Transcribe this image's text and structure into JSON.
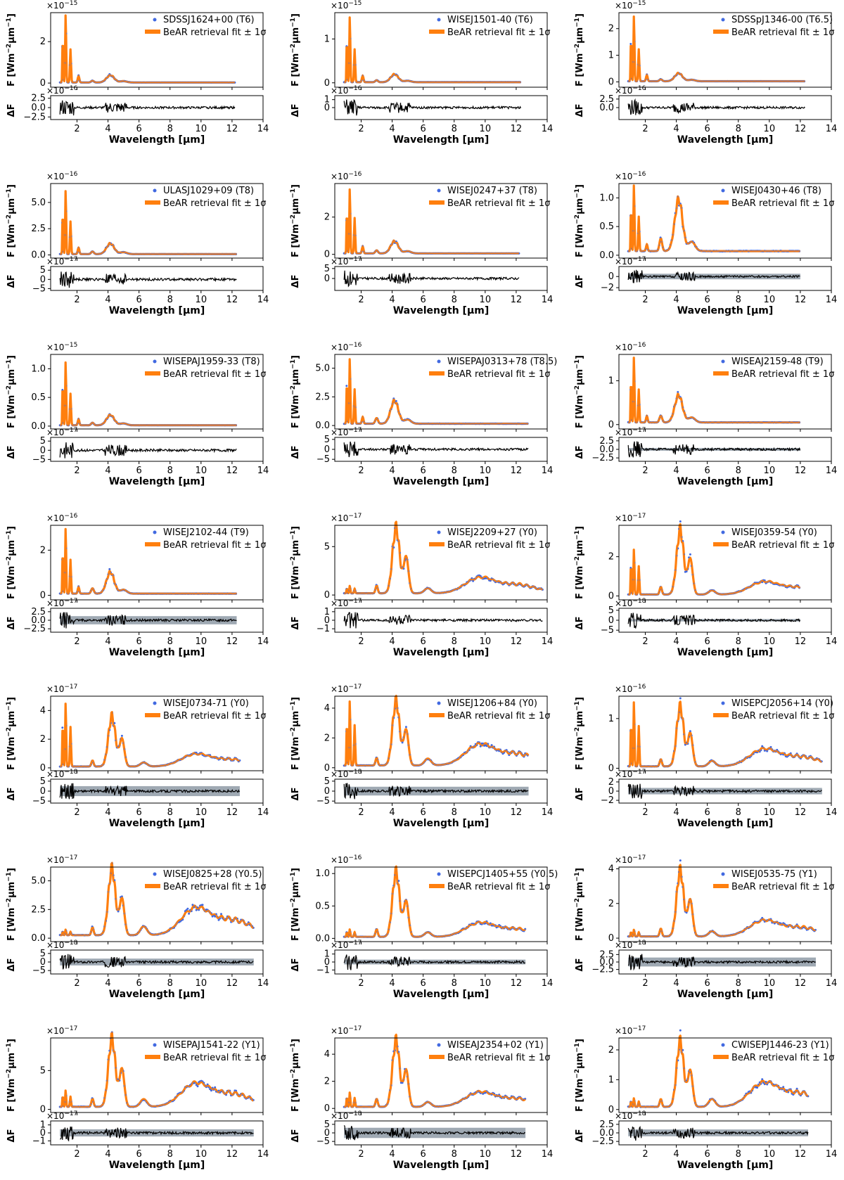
{
  "colors": {
    "data": "#4169e1",
    "fit": "#ff7f0e",
    "resid": "#000000",
    "band": "#7f8c9a"
  },
  "legend_fit_label": "BeAR retrieval fit ± 1σ",
  "flux_ylabel_main": "F [Wm",
  "flux_ylabel_unit": "μm",
  "resid_ylabel": "ΔF",
  "x_axis": {
    "label": "Wavelength [μm]",
    "ticks": [
      "2",
      "4",
      "6",
      "8",
      "10",
      "12",
      "14"
    ],
    "range": [
      0.3,
      14
    ]
  },
  "chart_data": [
    {
      "type": "line",
      "name": "SDSSJ1624+00 (T6)",
      "exp": "−15",
      "scale": 1e-15,
      "ylim": [
        -0.2,
        3.4
      ],
      "yticks": [
        "0",
        "2"
      ],
      "yvals": [
        0,
        2
      ],
      "rexp": "−16",
      "rlim": [
        -3.2,
        3.2
      ],
      "rticks": [
        "2.5",
        "0.0",
        "−2.5"
      ],
      "rvals": [
        2.5,
        0,
        -2.5
      ],
      "xmax": 12.2,
      "class": "T",
      "peaks": [
        3.4,
        1.6,
        0.35
      ],
      "band": 0
    },
    {
      "type": "line",
      "name": "WISEJ1501-40 (T6)",
      "exp": "−15",
      "scale": 1e-15,
      "ylim": [
        -0.1,
        1.6
      ],
      "yticks": [
        "0",
        "1"
      ],
      "yvals": [
        0,
        1
      ],
      "rexp": "−16",
      "rlim": [
        -1.5,
        1.5
      ],
      "rticks": [
        "1",
        "0"
      ],
      "rvals": [
        1,
        0
      ],
      "xmax": 12.3,
      "class": "T",
      "peaks": [
        1.55,
        0.75,
        0.18
      ],
      "band": 0
    },
    {
      "type": "line",
      "name": "SDSSpJ1346-00 (T6.5)",
      "exp": "−15",
      "scale": 1e-15,
      "ylim": [
        -0.2,
        2.6
      ],
      "yticks": [
        "0",
        "1",
        "2"
      ],
      "yvals": [
        0,
        1,
        2
      ],
      "rexp": "−16",
      "rlim": [
        -3.5,
        3.5
      ],
      "rticks": [
        "2.5",
        "0.0"
      ],
      "rvals": [
        2.5,
        0
      ],
      "xmax": 12.3,
      "class": "T",
      "peaks": [
        2.55,
        1.2,
        0.3
      ],
      "band": 0
    },
    {
      "type": "line",
      "name": "ULASJ1029+09 (T8)",
      "exp": "−16",
      "scale": 1e-16,
      "ylim": [
        -0.3,
        6.8
      ],
      "yticks": [
        "0.0",
        "2.5",
        "5.0"
      ],
      "yvals": [
        0,
        2.5,
        5
      ],
      "rexp": "−17",
      "rlim": [
        -6,
        7
      ],
      "rticks": [
        "5",
        "0",
        "−5"
      ],
      "rvals": [
        5,
        0,
        -5
      ],
      "xmax": 12.3,
      "class": "T",
      "peaks": [
        6.3,
        3.1,
        1.0
      ],
      "band": 0
    },
    {
      "type": "line",
      "name": "WISEJ0247+37 (T8)",
      "exp": "−16",
      "scale": 1e-16,
      "ylim": [
        -0.2,
        3.8
      ],
      "yticks": [
        "0",
        "2"
      ],
      "yvals": [
        0,
        2
      ],
      "rexp": "−17",
      "rlim": [
        -6,
        6
      ],
      "rticks": [
        "5",
        "0"
      ],
      "rvals": [
        5,
        0
      ],
      "xmax": 12.2,
      "class": "T",
      "peaks": [
        3.6,
        1.9,
        0.65
      ],
      "band": 0
    },
    {
      "type": "line",
      "name": "WISEJ0430+46 (T8)",
      "exp": "−16",
      "scale": 1e-16,
      "ylim": [
        -0.05,
        1.25
      ],
      "yticks": [
        "0.0",
        "0.5",
        "1.0"
      ],
      "yvals": [
        0,
        0.5,
        1
      ],
      "rexp": "−17",
      "rlim": [
        -2.5,
        1.8
      ],
      "rticks": [
        "0",
        "−2"
      ],
      "rvals": [
        0,
        -2
      ],
      "xmax": 12.0,
      "class": "T",
      "peaks": [
        1.2,
        0.6,
        0.9
      ],
      "band": 0.5
    },
    {
      "type": "line",
      "name": "WISEPAJ1959-33 (T8)",
      "exp": "−15",
      "scale": 1e-15,
      "ylim": [
        -0.05,
        1.25
      ],
      "yticks": [
        "0.0",
        "0.5",
        "1.0"
      ],
      "yvals": [
        0,
        0.5,
        1
      ],
      "rexp": "−17",
      "rlim": [
        -6,
        7
      ],
      "rticks": [
        "5",
        "0",
        "−5"
      ],
      "rvals": [
        5,
        0,
        -5
      ],
      "xmax": 12.3,
      "class": "T",
      "peaks": [
        1.15,
        0.55,
        0.18
      ],
      "band": 0
    },
    {
      "type": "line",
      "name": "WISEPAJ0313+78 (T8.5)",
      "exp": "−16",
      "scale": 1e-16,
      "ylim": [
        -0.3,
        6.2
      ],
      "yticks": [
        "0.0",
        "2.5",
        "5.0"
      ],
      "yvals": [
        0,
        2.5,
        5
      ],
      "rexp": "−17",
      "rlim": [
        -6,
        6
      ],
      "rticks": [
        "5",
        "0",
        "−5"
      ],
      "rvals": [
        5,
        0,
        -5
      ],
      "xmax": 12.8,
      "class": "T",
      "peaks": [
        5.9,
        3.0,
        2.0
      ],
      "band": 0
    },
    {
      "type": "line",
      "name": "WISEAJ2159-48 (T9)",
      "exp": "−16",
      "scale": 1e-16,
      "ylim": [
        -0.1,
        1.6
      ],
      "yticks": [
        "0",
        "1"
      ],
      "yvals": [
        0,
        1
      ],
      "rexp": "−17",
      "rlim": [
        -3.5,
        3.5
      ],
      "rticks": [
        "2.5",
        "0.0",
        "−2.5"
      ],
      "rvals": [
        2.5,
        0,
        -2.5
      ],
      "xmax": 12.0,
      "class": "T",
      "peaks": [
        1.55,
        0.75,
        0.62
      ],
      "band": 0.4
    },
    {
      "type": "line",
      "name": "WISEJ2102-44 (T9)",
      "exp": "−16",
      "scale": 1e-16,
      "ylim": [
        -0.2,
        3.1
      ],
      "yticks": [
        "0",
        "2"
      ],
      "yvals": [
        0,
        2
      ],
      "rexp": "−17",
      "rlim": [
        -3.5,
        3.5
      ],
      "rticks": [
        "2.5",
        "0.0",
        "−2.5"
      ],
      "rvals": [
        2.5,
        0,
        -2.5
      ],
      "xmax": 12.3,
      "class": "T",
      "peaks": [
        3.0,
        1.5,
        0.95
      ],
      "band": 1.2
    },
    {
      "type": "line",
      "name": "WISEJ2209+27 (Y0)",
      "exp": "−17",
      "scale": 1e-17,
      "ylim": [
        -0.5,
        7.2
      ],
      "yticks": [
        "0",
        "5"
      ],
      "yvals": [
        0,
        5
      ],
      "rexp": "−17",
      "rlim": [
        -1.4,
        1.4
      ],
      "rticks": [
        "1",
        "0",
        "−1"
      ],
      "rvals": [
        1,
        0,
        -1
      ],
      "xmax": 13.7,
      "class": "Y",
      "peaks": [
        6.8,
        0.8,
        1.5
      ],
      "band": 0
    },
    {
      "type": "line",
      "name": "WISEJ0359-54 (Y0)",
      "exp": "−17",
      "scale": 1e-17,
      "ylim": [
        -0.2,
        3.6
      ],
      "yticks": [
        "0",
        "2"
      ],
      "yvals": [
        0,
        2
      ],
      "rexp": "−18",
      "rlim": [
        -6,
        6
      ],
      "rticks": [
        "5",
        "0",
        "−5"
      ],
      "rvals": [
        5,
        0,
        -5
      ],
      "xmax": 12.0,
      "class": "Y",
      "peaks": [
        3.3,
        2.4,
        0.6
      ],
      "band": 0.6
    },
    {
      "type": "line",
      "name": "WISEJ0734-71 (Y0)",
      "exp": "−17",
      "scale": 1e-17,
      "ylim": [
        -0.2,
        5.0
      ],
      "yticks": [
        "0",
        "2",
        "4"
      ],
      "yvals": [
        0,
        2,
        4
      ],
      "rexp": "−18",
      "rlim": [
        -6,
        6
      ],
      "rticks": [
        "5",
        "0",
        "−5"
      ],
      "rvals": [
        5,
        0,
        -5
      ],
      "xmax": 12.5,
      "class": "Y",
      "peaks": [
        3.5,
        4.6,
        0.8
      ],
      "band": 2.5
    },
    {
      "type": "line",
      "name": "WISEJ1206+84 (Y0)",
      "exp": "−17",
      "scale": 1e-17,
      "ylim": [
        -0.2,
        4.8
      ],
      "yticks": [
        "0",
        "2",
        "4"
      ],
      "yvals": [
        0,
        2,
        4
      ],
      "rexp": "−18",
      "rlim": [
        -6,
        6
      ],
      "rticks": [
        "5",
        "0",
        "−5"
      ],
      "rvals": [
        5,
        0,
        -5
      ],
      "xmax": 12.8,
      "class": "Y",
      "peaks": [
        4.3,
        4.5,
        1.3
      ],
      "band": 2.2
    },
    {
      "type": "line",
      "name": "WISEPCJ2056+14 (Y0)",
      "exp": "−16",
      "scale": 1e-16,
      "ylim": [
        -0.05,
        1.45
      ],
      "yticks": [
        "0",
        "1"
      ],
      "yvals": [
        0,
        1
      ],
      "rexp": "−17",
      "rlim": [
        -2.6,
        2.6
      ],
      "rticks": [
        "2",
        "0",
        "−2"
      ],
      "rvals": [
        2,
        0,
        -2
      ],
      "xmax": 13.4,
      "class": "Y",
      "peaks": [
        1.2,
        1.35,
        0.32
      ],
      "band": 0.7
    },
    {
      "type": "line",
      "name": "WISEJ0825+28 (Y0.5)",
      "exp": "−17",
      "scale": 1e-17,
      "ylim": [
        -0.3,
        6.2
      ],
      "yticks": [
        "0.0",
        "2.5",
        "5.0"
      ],
      "yvals": [
        0,
        2.5,
        5
      ],
      "rexp": "−18",
      "rlim": [
        -7,
        7
      ],
      "rticks": [
        "5",
        "0",
        "−5"
      ],
      "rvals": [
        5,
        0,
        -5
      ],
      "xmax": 13.4,
      "class": "Y",
      "peaks": [
        5.8,
        0.5,
        2.2
      ],
      "band": 2.0
    },
    {
      "type": "line",
      "name": "WISEPCJ1405+55 (Y0.5)",
      "exp": "−16",
      "scale": 1e-16,
      "ylim": [
        -0.05,
        1.1
      ],
      "yticks": [
        "0.0",
        "0.5",
        "1.0"
      ],
      "yvals": [
        0,
        0.5,
        1
      ],
      "rexp": "−17",
      "rlim": [
        -1.5,
        1.5
      ],
      "rticks": [
        "1",
        "0",
        "−1"
      ],
      "rvals": [
        1,
        0,
        -1
      ],
      "xmax": 12.6,
      "class": "Y",
      "peaks": [
        1.0,
        0.12,
        0.2
      ],
      "band": 0.3
    },
    {
      "type": "line",
      "name": "WISEJ0535-75 (Y1)",
      "exp": "−17",
      "scale": 1e-17,
      "ylim": [
        -0.2,
        4.1
      ],
      "yticks": [
        "0",
        "2",
        "4"
      ],
      "yvals": [
        0,
        2,
        4
      ],
      "rexp": "−18",
      "rlim": [
        -4,
        4
      ],
      "rticks": [
        "2.5",
        "0.0",
        "−2.5"
      ],
      "rvals": [
        2.5,
        0,
        -2.5
      ],
      "xmax": 13.0,
      "class": "Y",
      "peaks": [
        3.8,
        0.4,
        0.85
      ],
      "band": 1.5
    },
    {
      "type": "line",
      "name": "WISEPAJ1541-22 (Y1)",
      "exp": "−17",
      "scale": 1e-17,
      "ylim": [
        -0.4,
        9.2
      ],
      "yticks": [
        "0",
        "5"
      ],
      "yvals": [
        0,
        5
      ],
      "rexp": "−17",
      "rlim": [
        -1.5,
        1.5
      ],
      "rticks": [
        "1",
        "0",
        "−1"
      ],
      "rvals": [
        1,
        0,
        -1
      ],
      "xmax": 13.4,
      "class": "Y",
      "peaks": [
        8.8,
        2.2,
        2.8
      ],
      "band": 0.45
    },
    {
      "type": "line",
      "name": "WISEAJ2354+02 (Y1)",
      "exp": "−17",
      "scale": 1e-17,
      "ylim": [
        -0.3,
        5.2
      ],
      "yticks": [
        "0",
        "2",
        "4"
      ],
      "yvals": [
        0,
        2,
        4
      ],
      "rexp": "−18",
      "rlim": [
        -7,
        7
      ],
      "rticks": [
        "5",
        "0",
        "−5"
      ],
      "rvals": [
        5,
        0,
        -5
      ],
      "xmax": 12.6,
      "class": "Y",
      "peaks": [
        4.9,
        1.1,
        1.0
      ],
      "band": 3.0
    },
    {
      "type": "line",
      "name": "CWISEPJ1446-23 (Y1)",
      "exp": "−17",
      "scale": 1e-17,
      "ylim": [
        -0.1,
        2.4
      ],
      "yticks": [
        "0",
        "1",
        "2"
      ],
      "yvals": [
        0,
        1,
        2
      ],
      "rexp": "−18",
      "rlim": [
        -3.5,
        3.5
      ],
      "rticks": [
        "2.5",
        "0.0",
        "−2.5"
      ],
      "rvals": [
        2.5,
        0,
        -2.5
      ],
      "xmax": 12.5,
      "class": "Y",
      "peaks": [
        2.2,
        0.3,
        0.75
      ],
      "band": 1.0
    }
  ]
}
